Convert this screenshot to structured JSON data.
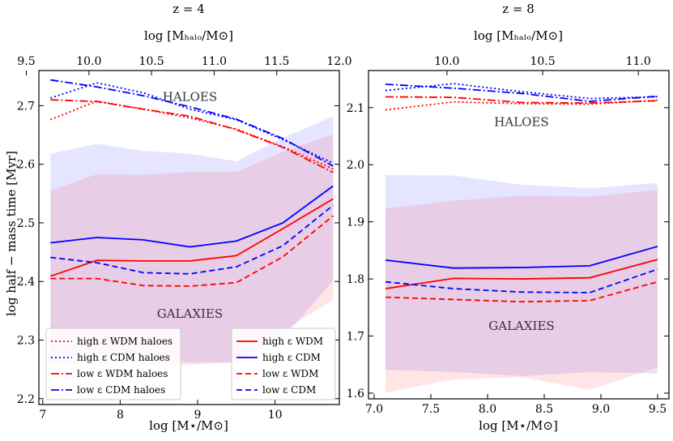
{
  "chart_data": [
    {
      "type": "line",
      "panel": "left",
      "title": "z = 4",
      "top_axis_label": "log [M_halo/M_sun]",
      "top_axis_label_display": "log [Mₕₐₗₒ/M⊙]",
      "xlabel": "log [M⋆/M⊙]",
      "ylabel": "log half − mass time [Myr]",
      "xlim": [
        6.95,
        10.83
      ],
      "ylim": [
        2.19,
        2.76
      ],
      "xticks": [
        7,
        8,
        9,
        10
      ],
      "yticks": [
        2.2,
        2.3,
        2.4,
        2.5,
        2.6,
        2.7
      ],
      "ytick_labels": [
        "2.2",
        "2.3",
        "2.4",
        "2.5",
        "2.6",
        "2.7"
      ],
      "top_xlim": [
        9.6,
        12.0
      ],
      "top_ticks": [
        9.5,
        10.0,
        10.5,
        11.0,
        11.5,
        12.0
      ],
      "top_tick_labels": [
        "9.5",
        "10.0",
        "10.5",
        "11.0",
        "11.5",
        "12.0"
      ],
      "annotations": [
        {
          "text": "HALOES",
          "x": 8.9,
          "y": 2.715
        },
        {
          "text": "GALAXIES",
          "x": 8.9,
          "y": 2.345
        }
      ],
      "bands": [
        {
          "name": "CDM scatter",
          "color": "#0000ff",
          "opacity": 0.1,
          "x": [
            7.1,
            7.7,
            8.3,
            8.9,
            9.5,
            10.1,
            10.75
          ],
          "upper": [
            2.618,
            2.635,
            2.623,
            2.618,
            2.605,
            2.645,
            2.682
          ],
          "lower": [
            2.262,
            2.272,
            2.272,
            2.262,
            2.262,
            2.302,
            2.402
          ]
        },
        {
          "name": "WDM scatter",
          "color": "#ff0000",
          "opacity": 0.1,
          "x": [
            7.1,
            7.7,
            8.3,
            8.9,
            9.5,
            10.1,
            10.75
          ],
          "upper": [
            2.555,
            2.583,
            2.582,
            2.587,
            2.587,
            2.621,
            2.651
          ],
          "lower": [
            2.258,
            2.261,
            2.258,
            2.258,
            2.262,
            2.315,
            2.369
          ]
        }
      ],
      "series": [
        {
          "name": "high ε WDM haloes",
          "color": "#ff0000",
          "dash": "dotted",
          "x": [
            7.1,
            7.7,
            8.3,
            8.9,
            9.5,
            10.1,
            10.75
          ],
          "values": [
            2.676,
            2.708,
            2.694,
            2.679,
            2.66,
            2.63,
            2.592
          ]
        },
        {
          "name": "high ε CDM haloes",
          "color": "#0000ff",
          "dash": "dotted",
          "x": [
            7.1,
            7.7,
            8.3,
            8.9,
            9.5,
            10.1,
            10.75
          ],
          "values": [
            2.713,
            2.739,
            2.722,
            2.694,
            2.676,
            2.642,
            2.602
          ]
        },
        {
          "name": "low ε WDM haloes",
          "color": "#ff0000",
          "dash": "dashdot",
          "x": [
            7.1,
            7.7,
            8.3,
            8.9,
            9.5,
            10.1,
            10.75
          ],
          "values": [
            2.71,
            2.707,
            2.694,
            2.682,
            2.659,
            2.629,
            2.586
          ]
        },
        {
          "name": "low ε CDM haloes",
          "color": "#0000ff",
          "dash": "dashdot",
          "x": [
            7.1,
            7.7,
            8.3,
            8.9,
            9.5,
            10.1,
            10.75
          ],
          "values": [
            2.744,
            2.732,
            2.717,
            2.698,
            2.677,
            2.644,
            2.597
          ]
        },
        {
          "name": "high ε WDM",
          "color": "#ff0000",
          "dash": "solid",
          "x": [
            7.1,
            7.7,
            8.3,
            8.9,
            9.5,
            10.1,
            10.75
          ],
          "values": [
            2.409,
            2.436,
            2.435,
            2.435,
            2.444,
            2.49,
            2.541
          ]
        },
        {
          "name": "high ε CDM",
          "color": "#0000ff",
          "dash": "solid",
          "x": [
            7.1,
            7.7,
            8.3,
            8.9,
            9.5,
            10.1,
            10.75
          ],
          "values": [
            2.466,
            2.475,
            2.471,
            2.459,
            2.469,
            2.5,
            2.563
          ]
        },
        {
          "name": "low ε WDM",
          "color": "#ff0000",
          "dash": "dashed",
          "x": [
            7.1,
            7.7,
            8.3,
            8.9,
            9.5,
            10.1,
            10.75
          ],
          "values": [
            2.405,
            2.405,
            2.393,
            2.392,
            2.398,
            2.442,
            2.512
          ]
        },
        {
          "name": "low ε CDM",
          "color": "#0000ff",
          "dash": "dashed",
          "x": [
            7.1,
            7.7,
            8.3,
            8.9,
            9.5,
            10.1,
            10.75
          ],
          "values": [
            2.441,
            2.432,
            2.415,
            2.413,
            2.425,
            2.461,
            2.53
          ]
        }
      ],
      "legends": [
        {
          "placement": "lower-left",
          "entries": [
            "high ε WDM haloes",
            "high ε CDM haloes",
            "low ε WDM haloes",
            "low ε CDM haloes"
          ]
        },
        {
          "placement": "lower-right",
          "entries": [
            "high ε WDM",
            "high ε CDM",
            "low ε WDM",
            "low ε CDM"
          ]
        }
      ]
    },
    {
      "type": "line",
      "panel": "right",
      "title": "z = 8",
      "top_axis_label": "log [M_halo/M_sun]",
      "top_axis_label_display": "log [Mₕₐₗₒ/M⊙]",
      "xlabel": "log [M⋆/M⊙]",
      "ylabel": "",
      "xlim": [
        6.95,
        9.6
      ],
      "ylim": [
        1.59,
        2.165
      ],
      "xticks": [
        7.0,
        7.5,
        8.0,
        8.5,
        9.0,
        9.5
      ],
      "xtick_labels": [
        "7.0",
        "7.5",
        "8.0",
        "8.5",
        "9.0",
        "9.5"
      ],
      "yticks": [
        1.6,
        1.7,
        1.8,
        1.9,
        2.0,
        2.1
      ],
      "ytick_labels": [
        "1.6",
        "1.7",
        "1.8",
        "1.9",
        "2.0",
        "2.1"
      ],
      "top_xlim": [
        9.59,
        11.16
      ],
      "top_ticks": [
        10.0,
        10.5,
        11.0
      ],
      "top_tick_labels": [
        "10.0",
        "10.5",
        "11.0"
      ],
      "annotations": [
        {
          "text": "HALOES",
          "x": 8.3,
          "y": 2.075
        },
        {
          "text": "GALAXIES",
          "x": 8.3,
          "y": 1.718
        }
      ],
      "bands": [
        {
          "name": "CDM scatter",
          "color": "#0000ff",
          "opacity": 0.1,
          "x": [
            7.1,
            7.7,
            8.3,
            8.9,
            9.5
          ],
          "upper": [
            1.982,
            1.981,
            1.965,
            1.959,
            1.968
          ],
          "lower": [
            1.641,
            1.637,
            1.63,
            1.637,
            1.634
          ]
        },
        {
          "name": "WDM scatter",
          "color": "#ff0000",
          "opacity": 0.1,
          "x": [
            7.1,
            7.7,
            8.3,
            8.9,
            9.5
          ],
          "upper": [
            1.923,
            1.937,
            1.946,
            1.944,
            1.956
          ],
          "lower": [
            1.601,
            1.624,
            1.628,
            1.606,
            1.645
          ]
        }
      ],
      "series": [
        {
          "name": "high ε WDM haloes",
          "color": "#ff0000",
          "dash": "dotted",
          "x": [
            7.1,
            7.7,
            8.3,
            8.9,
            9.5
          ],
          "values": [
            2.096,
            2.11,
            2.107,
            2.106,
            2.113
          ]
        },
        {
          "name": "high ε CDM haloes",
          "color": "#0000ff",
          "dash": "dotted",
          "x": [
            7.1,
            7.7,
            8.3,
            8.9,
            9.5
          ],
          "values": [
            2.13,
            2.142,
            2.128,
            2.116,
            2.119
          ]
        },
        {
          "name": "low ε WDM haloes",
          "color": "#ff0000",
          "dash": "dashdot",
          "x": [
            7.1,
            7.7,
            8.3,
            8.9,
            9.5
          ],
          "values": [
            2.119,
            2.118,
            2.109,
            2.108,
            2.112
          ]
        },
        {
          "name": "low ε CDM haloes",
          "color": "#0000ff",
          "dash": "dashdot",
          "x": [
            7.1,
            7.7,
            8.3,
            8.9,
            9.5
          ],
          "values": [
            2.141,
            2.134,
            2.125,
            2.111,
            2.12
          ]
        },
        {
          "name": "high ε WDM",
          "color": "#ff0000",
          "dash": "solid",
          "x": [
            7.1,
            7.7,
            8.3,
            8.9,
            9.5
          ],
          "values": [
            1.783,
            1.801,
            1.8,
            1.802,
            1.834
          ]
        },
        {
          "name": "high ε CDM",
          "color": "#0000ff",
          "dash": "solid",
          "x": [
            7.1,
            7.7,
            8.3,
            8.9,
            9.5
          ],
          "values": [
            1.833,
            1.819,
            1.82,
            1.823,
            1.857
          ]
        },
        {
          "name": "low ε WDM",
          "color": "#ff0000",
          "dash": "dashed",
          "x": [
            7.1,
            7.7,
            8.3,
            8.9,
            9.5
          ],
          "values": [
            1.768,
            1.764,
            1.76,
            1.762,
            1.795
          ]
        },
        {
          "name": "low ε CDM",
          "color": "#0000ff",
          "dash": "dashed",
          "x": [
            7.1,
            7.7,
            8.3,
            8.9,
            9.5
          ],
          "values": [
            1.795,
            1.783,
            1.777,
            1.776,
            1.817
          ]
        }
      ],
      "legends": []
    }
  ]
}
